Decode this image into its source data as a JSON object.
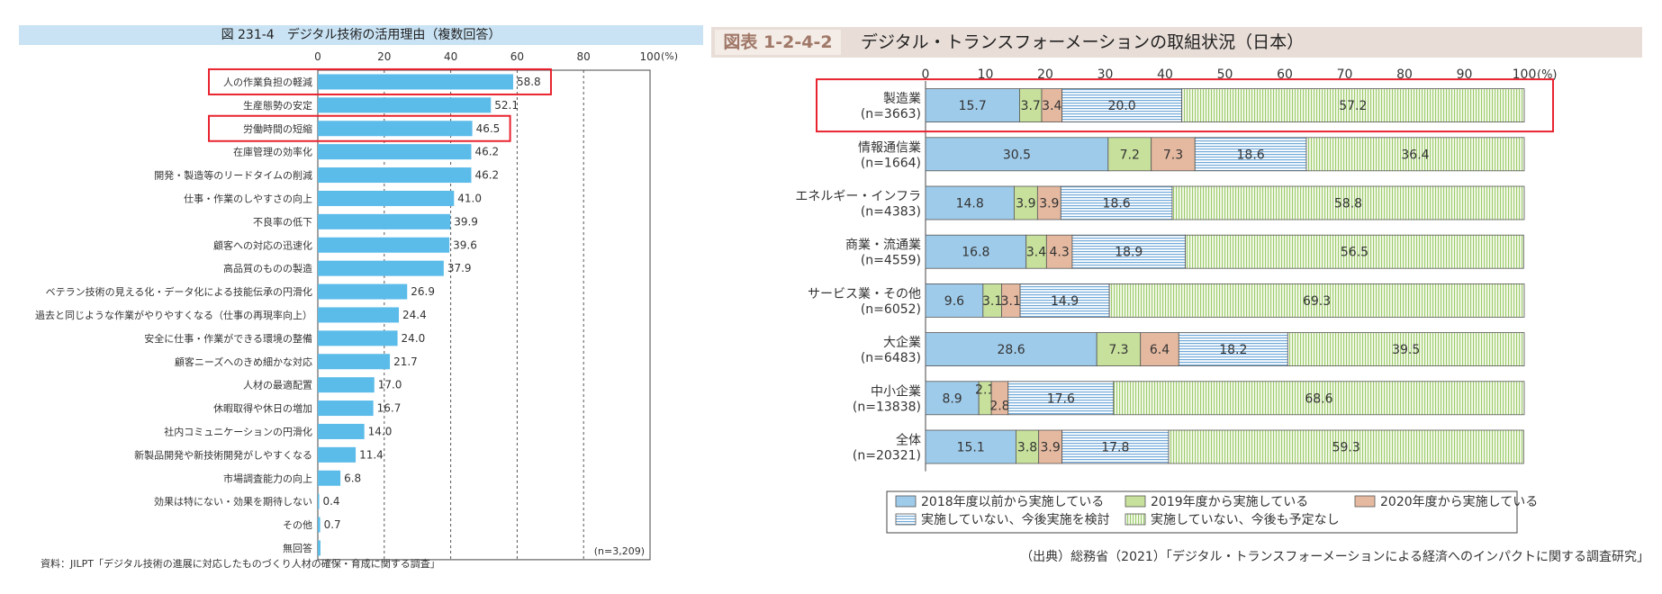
{
  "left": {
    "title": "図 231-4　デジタル技術の活用理由（複数回答）",
    "source": "資料：JILPT「デジタル技術の進展に対応したものづくり人材の確保・育成に関する調査」",
    "n_note": "(n=3,209)",
    "pct_label": "(%)",
    "chart_data": {
      "type": "bar",
      "orientation": "horizontal",
      "title": "図 231-4　デジタル技術の活用理由（複数回答）",
      "xlim": [
        0,
        100
      ],
      "x_ticks": [
        0,
        20,
        40,
        60,
        80,
        100
      ],
      "grid": "dashed vertical",
      "categories": [
        "人の作業負担の軽減",
        "生産態勢の安定",
        "労働時間の短縮",
        "在庫管理の効率化",
        "開発・製造等のリードタイムの削減",
        "仕事・作業のしやすさの向上",
        "不良率の低下",
        "顧客への対応の迅速化",
        "高品質のものの製造",
        "ベテラン技術の見える化・データ化による技能伝承の円滑化",
        "過去と同じような作業がやりやすくなる（仕事の再現率向上）",
        "安全に仕事・作業ができる環境の整備",
        "顧客ニーズへのきめ細かな対応",
        "人材の最適配置",
        "休暇取得や休日の増加",
        "社内コミュニケーションの円滑化",
        "新製品開発や新技術開発がしやすくなる",
        "市場調査能力の向上",
        "効果は特にない・効果を期待しない",
        "その他",
        "無回答"
      ],
      "values": [
        58.8,
        52.1,
        46.5,
        46.2,
        46.2,
        41.0,
        39.9,
        39.6,
        37.9,
        26.9,
        24.4,
        24.0,
        21.7,
        17.0,
        16.7,
        14.0,
        11.4,
        6.8,
        0.4,
        0.7,
        0.8
      ],
      "value_labels": [
        "58.8",
        "52.1",
        "46.5",
        "46.2",
        "46.2",
        "41.0",
        "39.9",
        "39.6",
        "37.9",
        "26.9",
        "24.4",
        "24.0",
        "21.7",
        "17.0",
        "16.7",
        "14.0",
        "11.4",
        "6.8",
        "0.4",
        "0.7",
        ""
      ],
      "highlighted": [
        0,
        2
      ],
      "colors": {
        "bar": "#5bbbe9",
        "highlight": "#e8232f"
      }
    }
  },
  "right": {
    "fig_no": "図表 1-2-4-2",
    "title": "デジタル・トランスフォーメーションの取組状況（日本）",
    "source": "（出典）総務省（2021）「デジタル・トランスフォーメーションによる経済へのインパクトに関する調査研究」",
    "pct_label": "(%)",
    "chart_data": {
      "type": "bar",
      "orientation": "horizontal",
      "stacked": true,
      "title": "デジタル・トランスフォーメーションの取組状況（日本）",
      "xlim": [
        0,
        100
      ],
      "x_ticks": [
        0,
        10,
        20,
        30,
        40,
        50,
        60,
        70,
        80,
        90,
        100
      ],
      "legend_position": "bottom",
      "categories": [
        {
          "name": "製造業",
          "n": "(n=3663)"
        },
        {
          "name": "情報通信業",
          "n": "(n=1664)"
        },
        {
          "name": "エネルギー・インフラ",
          "n": "(n=4383)"
        },
        {
          "name": "商業・流通業",
          "n": "(n=4559)"
        },
        {
          "name": "サービス業・その他",
          "n": "(n=6052)"
        },
        {
          "name": "大企業",
          "n": "(n=6483)"
        },
        {
          "name": "中小企業",
          "n": "(n=13838)"
        },
        {
          "name": "全体",
          "n": "(n=20321)"
        }
      ],
      "series": [
        {
          "name": "2018年度以前から実施している",
          "color": "#9fcbea",
          "pattern": "solid",
          "values": [
            15.7,
            30.5,
            14.8,
            16.8,
            9.6,
            28.6,
            8.9,
            15.1
          ]
        },
        {
          "name": "2019年度から実施している",
          "color": "#c7e09c",
          "pattern": "solid",
          "values": [
            3.7,
            7.2,
            3.9,
            3.4,
            3.1,
            7.3,
            2.1,
            3.8
          ]
        },
        {
          "name": "2020年度から実施している",
          "color": "#e5b9a0",
          "pattern": "solid",
          "values": [
            3.4,
            7.3,
            3.9,
            4.3,
            3.1,
            6.4,
            2.8,
            3.9
          ]
        },
        {
          "name": "実施していない、今後実施を検討",
          "color": "#ffffff",
          "pattern": "h-stripes",
          "values": [
            20.0,
            18.6,
            18.6,
            18.9,
            14.9,
            18.2,
            17.6,
            17.8
          ]
        },
        {
          "name": "実施していない、今後も予定なし",
          "color": "#eef6e2",
          "pattern": "v-stripes",
          "values": [
            57.2,
            36.4,
            58.8,
            56.5,
            69.3,
            39.5,
            68.6,
            59.3
          ]
        }
      ],
      "value_labels": [
        [
          "15.7",
          "3.7",
          "3.4",
          "20.0",
          "57.2"
        ],
        [
          "30.5",
          "7.2",
          "7.3",
          "18.6",
          "36.4"
        ],
        [
          "14.8",
          "3.9",
          "3.9",
          "18.6",
          "58.8"
        ],
        [
          "16.8",
          "3.4",
          "4.3",
          "18.9",
          "56.5"
        ],
        [
          "9.6",
          "3.1",
          "3.1",
          "14.9",
          "69.3"
        ],
        [
          "28.6",
          "7.3",
          "6.4",
          "18.2",
          "39.5"
        ],
        [
          "8.9",
          "2.1",
          "2.8",
          "17.6",
          "68.6"
        ],
        [
          "15.1",
          "3.8",
          "3.9",
          "17.8",
          "59.3"
        ]
      ],
      "highlighted": [
        0
      ],
      "colors": {
        "highlight": "#e8232f",
        "hstripe": "#6fa8d8",
        "vstripe": "#9ccc6c"
      }
    }
  }
}
